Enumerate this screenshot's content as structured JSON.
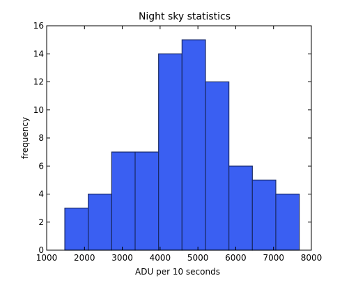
{
  "chart_data": {
    "type": "bar",
    "title": "Night sky statistics",
    "xlabel": "ADU per 10 seconds",
    "ylabel": "frequency",
    "xlim": [
      1000,
      8000
    ],
    "ylim": [
      0,
      16
    ],
    "xticks": [
      "1000",
      "2000",
      "3000",
      "4000",
      "5000",
      "6000",
      "7000",
      "8000"
    ],
    "yticks": [
      "0",
      "2",
      "4",
      "6",
      "8",
      "10",
      "12",
      "14",
      "16"
    ],
    "bin_edges": [
      1480,
      2100,
      2720,
      3340,
      3960,
      4580,
      5200,
      5820,
      6440,
      7060,
      7680
    ],
    "values": [
      3,
      4,
      7,
      7,
      14,
      15,
      12,
      6,
      5,
      4
    ],
    "bar_color": "#3a5ff2",
    "edge_color": "#1a2a66",
    "grid": false,
    "legend": "none"
  }
}
